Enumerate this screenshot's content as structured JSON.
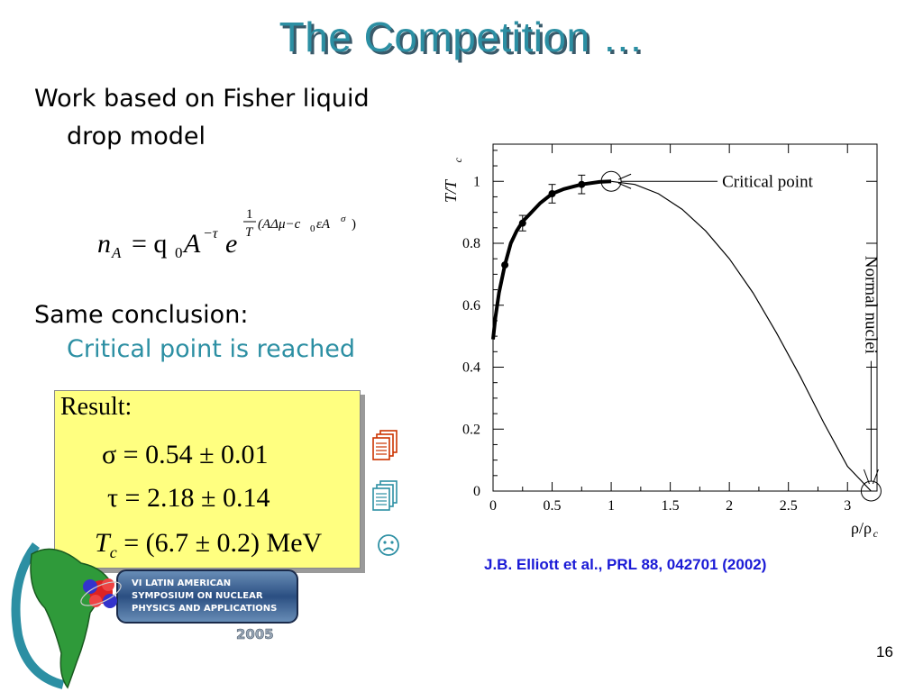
{
  "slide": {
    "title": "The Competition …",
    "bullet1_line1": "Work based on Fisher liquid",
    "bullet1_line2": "drop model",
    "bullet2_line1": "Same conclusion:",
    "bullet2_line2": "Critical point is reached",
    "page_number": "16",
    "reference": "J.B. Elliott et al., PRL 88, 042701 (2002)"
  },
  "equation": {
    "lhs": "n",
    "lhs_sub": "A",
    "rhs_prefix": "= q",
    "rhs_sub": "0",
    "base": "A",
    "exp1": "−τ",
    "e": "e",
    "frac_num": "1",
    "frac_den": "T",
    "exponent_body": "(AΔμ−c",
    "exponent_sub": "0",
    "exponent_tail": "εA",
    "exponent_sigma": "σ",
    "exponent_close": ")"
  },
  "result": {
    "title": "Result:",
    "sigma_line": "σ = 0.54 ± 0.01",
    "tau_line": "τ = 2.18 ± 0.14",
    "tc_T": "T",
    "tc_sub": "c",
    "tc_rest": " = (6.7 ± 0.2) MeV",
    "icons": [
      "document-stack-icon",
      "document-stack-icon",
      "sad-face-icon"
    ],
    "icon_colors": [
      "#cc3300",
      "#2c8fa3",
      "#2c8fa3"
    ]
  },
  "logo": {
    "line1": "VI LATIN AMERICAN",
    "line2": "SYMPOSIUM ON NUCLEAR",
    "line3": "PHYSICS AND APPLICATIONS",
    "line4": "2005"
  },
  "chart_data": {
    "type": "line",
    "xlabel": "ρ/ρ",
    "xlabel_sub": "c",
    "ylabel": "T/T",
    "ylabel_sub": "c",
    "xlim": [
      0,
      3.25
    ],
    "ylim": [
      0,
      1.12
    ],
    "x_ticks": [
      "0",
      "0.5",
      "1",
      "1.5",
      "2",
      "2.5",
      "3"
    ],
    "y_ticks": [
      "0",
      "0.2",
      "0.4",
      "0.6",
      "0.8",
      "1"
    ],
    "annotations": [
      "Critical point",
      "Normal nuclei"
    ],
    "series": [
      {
        "x": [
          0.0,
          0.02,
          0.05,
          0.1,
          0.15,
          0.2,
          0.25,
          0.3,
          0.4,
          0.5,
          0.6,
          0.75,
          0.9,
          1.0,
          1.2,
          1.4,
          1.6,
          1.8,
          2.0,
          2.2,
          2.4,
          2.6,
          2.8,
          3.0,
          3.2
        ],
        "y": [
          0.49,
          0.56,
          0.64,
          0.73,
          0.8,
          0.84,
          0.87,
          0.89,
          0.93,
          0.96,
          0.975,
          0.99,
          0.998,
          1.0,
          0.99,
          0.96,
          0.91,
          0.84,
          0.75,
          0.64,
          0.51,
          0.37,
          0.22,
          0.08,
          0.0
        ]
      }
    ],
    "points": [
      {
        "x": 0.1,
        "y": 0.73,
        "err": 0.0
      },
      {
        "x": 0.25,
        "y": 0.865,
        "err": 0.025
      },
      {
        "x": 0.5,
        "y": 0.96,
        "err": 0.03
      },
      {
        "x": 0.75,
        "y": 0.99,
        "err": 0.03
      }
    ],
    "markers": [
      {
        "label": "critical-point",
        "x": 1.0,
        "y": 1.0
      },
      {
        "label": "normal-nuclei",
        "x": 3.2,
        "y": 0.0
      }
    ]
  }
}
